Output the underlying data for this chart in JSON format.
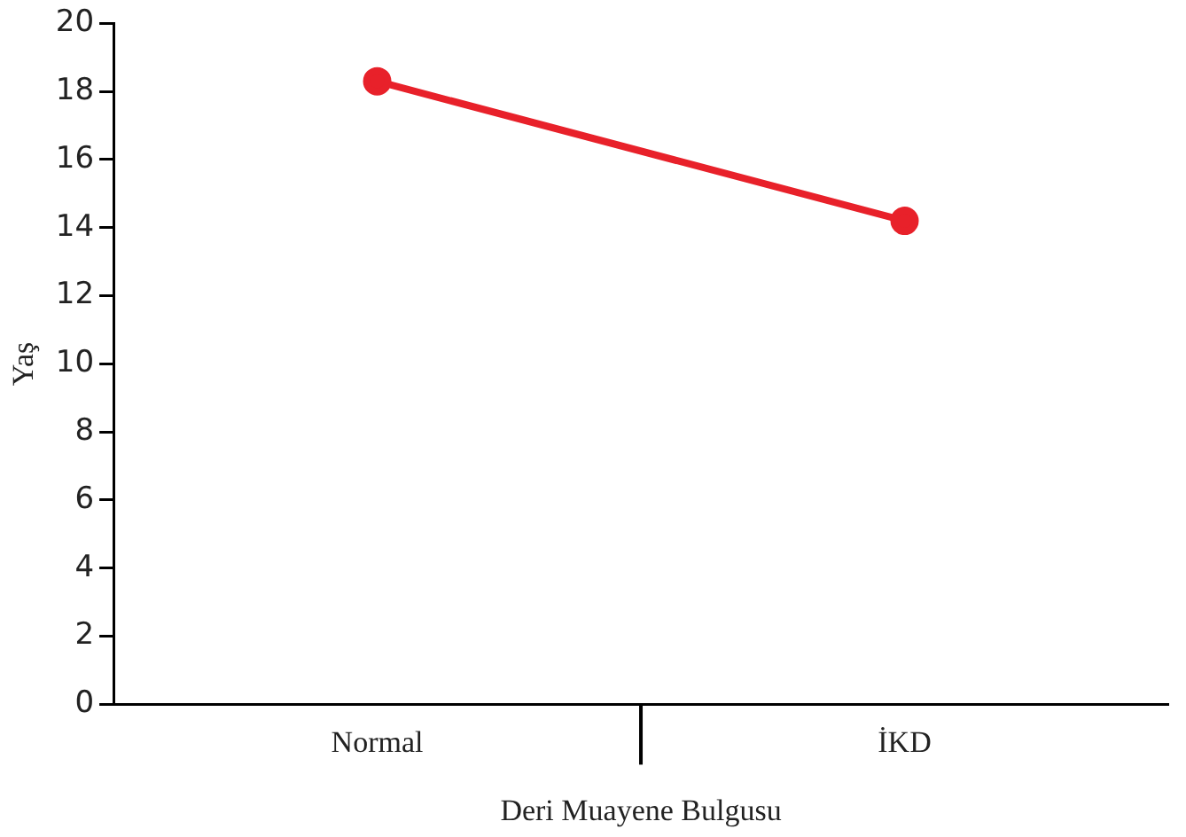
{
  "chart_data": {
    "type": "line",
    "xlabel": "Deri Muayene Bulgusu",
    "ylabel": "Yaş",
    "categories": [
      "Normal",
      "İKD"
    ],
    "series": [
      {
        "color": "#e8212a",
        "values": [
          18.3,
          14.2
        ]
      }
    ],
    "ylim": [
      0,
      20
    ],
    "yticks": [
      0,
      2,
      4,
      6,
      8,
      10,
      12,
      14,
      16,
      18,
      20
    ],
    "grid": false,
    "legend": false,
    "marker": "circle",
    "line_style": "solid"
  }
}
